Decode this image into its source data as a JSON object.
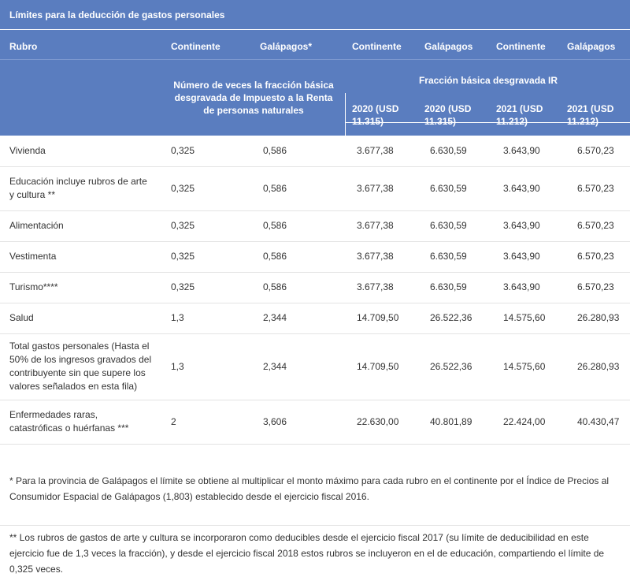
{
  "title": "Límites para la deducción de gastos personales",
  "header": {
    "rubro": "Rubro",
    "col1": "Continente",
    "col2": "Galápagos*",
    "col3": "Continente",
    "col4": "Galápagos",
    "col5": "Continente",
    "col6": "Galápagos",
    "group_left": "Número de veces la fracción básica desgravada de Impuesto a la Renta de personas naturales",
    "group_right": "Fracción básica desgravada IR",
    "sub3": "2020 (USD 11.315)",
    "sub4": "2020 (USD 11.315)",
    "sub5": "2021 (USD 11.212)",
    "sub6": "2021 (USD 11.212)"
  },
  "rows": [
    {
      "label": "Vivienda",
      "v": [
        "0,325",
        "0,586",
        "3.677,38",
        "6.630,59",
        "3.643,90",
        "6.570,23"
      ]
    },
    {
      "label": "Educación incluye rubros de arte y cultura **",
      "v": [
        "0,325",
        "0,586",
        "3.677,38",
        "6.630,59",
        "3.643,90",
        "6.570,23"
      ]
    },
    {
      "label": "Alimentación",
      "v": [
        "0,325",
        "0,586",
        "3.677,38",
        "6.630,59",
        "3.643,90",
        "6.570,23"
      ]
    },
    {
      "label": "Vestimenta",
      "v": [
        "0,325",
        "0,586",
        "3.677,38",
        "6.630,59",
        "3.643,90",
        "6.570,23"
      ]
    },
    {
      "label": "Turismo****",
      "v": [
        "0,325",
        "0,586",
        "3.677,38",
        "6.630,59",
        "3.643,90",
        "6.570,23"
      ]
    },
    {
      "label": "Salud",
      "v": [
        "1,3",
        "2,344",
        "14.709,50",
        "26.522,36",
        "14.575,60",
        "26.280,93"
      ]
    },
    {
      "label": "Total gastos personales (Hasta el 50% de los ingresos gravados del contribuyente sin que supere los valores señalados en esta fila)",
      "v": [
        "1,3",
        "2,344",
        "14.709,50",
        "26.522,36",
        "14.575,60",
        "26.280,93"
      ]
    },
    {
      "label": "Enfermedades raras, catastróficas o huérfanas ***",
      "v": [
        "2",
        "3,606",
        "22.630,00",
        "40.801,89",
        "22.424,00",
        "40.430,47"
      ]
    }
  ],
  "notes": {
    "n1": "* Para la provincia de Galápagos el límite se obtiene al multiplicar el monto máximo para cada rubro en el continente por el Índice de Precios al Consumidor Espacial de Galápagos (1,803) establecido desde el ejercicio fiscal 2016.",
    "n2": "** Los rubros de gastos de arte y cultura se incorporaron como deducibles desde el ejercicio fiscal 2017 (su límite de deducibilidad en este ejercicio fue de 1,3 veces la fracción), y desde el ejercicio fiscal 2018 estos rubros se incluyeron en el de educación, compartiendo el límite de 0,325 veces."
  },
  "colors": {
    "header_bg": "#5a7dbf",
    "row_border": "#e3e3e3"
  }
}
